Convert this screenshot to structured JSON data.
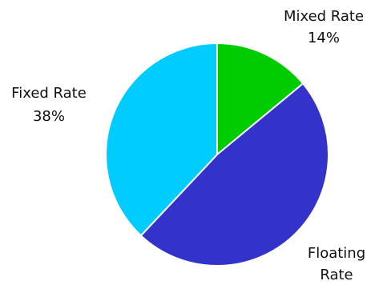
{
  "chart_data": {
    "type": "pie",
    "title": "",
    "slices": [
      {
        "label": "Mixed Rate",
        "percent_text": "14%",
        "value": 14,
        "color": "#00CC00"
      },
      {
        "label": "Floating Rate",
        "percent_text": "48%",
        "value": 48,
        "color": "#3333CC"
      },
      {
        "label": "Fixed Rate",
        "percent_text": "38%",
        "value": 38,
        "color": "#00CCFF"
      }
    ],
    "start_angle_deg": 0,
    "direction": "clockwise",
    "slice_border_color": "#ffffff"
  }
}
